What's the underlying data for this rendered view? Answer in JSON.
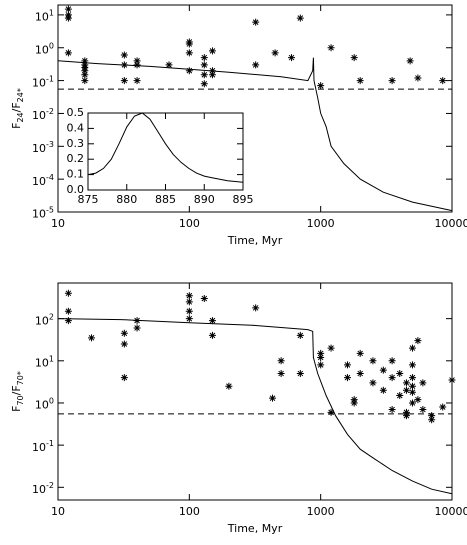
{
  "chart_data": [
    {
      "type": "line",
      "xlog": true,
      "ylog": true,
      "color": "#000000",
      "xlim": [
        10,
        10000
      ],
      "ylim": [
        1e-05,
        20
      ],
      "xticks": [
        10,
        100,
        1000,
        10000
      ],
      "yticks": [
        {
          "value": 1e-05,
          "label": "10",
          "exp": "-5"
        },
        {
          "value": 0.0001,
          "label": "10",
          "exp": "-4"
        },
        {
          "value": 0.001,
          "label": "10",
          "exp": "-3"
        },
        {
          "value": 0.01,
          "label": "10",
          "exp": "-2"
        },
        {
          "value": 0.1,
          "label": "10",
          "exp": "-1"
        },
        {
          "value": 1,
          "label": "10",
          "exp": "0"
        },
        {
          "value": 10,
          "label": "10",
          "exp": "1"
        }
      ],
      "xlabel": "Time, Myr",
      "ylabel": [
        "F",
        "24",
        "/F",
        "24*"
      ],
      "series": [
        {
          "style": "solid",
          "x": [
            10,
            20,
            50,
            100,
            200,
            500,
            800,
            870,
            880,
            890,
            950,
            1000,
            1100,
            1200,
            1500,
            2000,
            3000,
            5000,
            10000
          ],
          "values": [
            0.4,
            0.33,
            0.27,
            0.22,
            0.18,
            0.13,
            0.1,
            0.2,
            0.5,
            0.1,
            0.03,
            0.01,
            0.004,
            0.001,
            0.0003,
            0.0001,
            4e-05,
            2e-05,
            1.1e-05
          ]
        },
        {
          "style": "dashed",
          "x": [
            10,
            10000
          ],
          "values": [
            0.055,
            0.055
          ]
        },
        {
          "style": "points",
          "x": [
            12,
            12,
            12,
            12,
            16,
            16,
            16,
            16,
            16,
            16,
            32,
            32,
            32,
            40,
            40,
            40,
            70,
            100,
            100,
            100,
            100,
            130,
            130,
            130,
            130,
            150,
            150,
            150,
            320,
            320,
            450,
            600,
            700,
            1000,
            1200,
            1800,
            2000,
            3500,
            4800,
            5500,
            8500
          ],
          "values": [
            10,
            15,
            8,
            0.7,
            0.4,
            0.3,
            0.2,
            0.15,
            0.1,
            0.25,
            0.6,
            0.3,
            0.1,
            0.4,
            0.3,
            0.1,
            0.3,
            1.5,
            1.3,
            0.7,
            0.2,
            0.5,
            0.3,
            0.15,
            0.08,
            0.8,
            0.2,
            0.15,
            6,
            0.3,
            0.7,
            0.5,
            8,
            0.07,
            1.0,
            0.5,
            0.1,
            0.1,
            0.4,
            0.12,
            0.1
          ]
        }
      ]
    },
    {
      "type": "line",
      "xlog": false,
      "ylog": false,
      "color": "#000000",
      "xlim": [
        875,
        895
      ],
      "ylim": [
        0,
        0.5
      ],
      "xticks": [
        875,
        880,
        885,
        890,
        895
      ],
      "yticks": [
        {
          "value": 0,
          "label": "0.0"
        },
        0.1,
        0.2,
        0.3,
        0.4,
        0.5
      ],
      "series": [
        {
          "style": "solid",
          "x": [
            875,
            876,
            877,
            878,
            879,
            880,
            881,
            882,
            883,
            884,
            885,
            886,
            887,
            888,
            889,
            890,
            891,
            892,
            893,
            894,
            895
          ],
          "values": [
            0.1,
            0.11,
            0.14,
            0.2,
            0.3,
            0.41,
            0.48,
            0.5,
            0.46,
            0.38,
            0.3,
            0.23,
            0.18,
            0.14,
            0.11,
            0.09,
            0.08,
            0.07,
            0.06,
            0.055,
            0.05
          ]
        }
      ]
    },
    {
      "type": "line",
      "xlog": true,
      "ylog": true,
      "color": "#000000",
      "xlim": [
        10,
        10000
      ],
      "ylim": [
        0.005,
        700
      ],
      "xticks": [
        10,
        100,
        1000,
        10000
      ],
      "yticks": [
        {
          "value": 0.01,
          "label": "10",
          "exp": "-2"
        },
        {
          "value": 0.1,
          "label": "10",
          "exp": "-1"
        },
        {
          "value": 1,
          "label": "10",
          "exp": "0"
        },
        {
          "value": 10,
          "label": "10",
          "exp": "1"
        },
        {
          "value": 100,
          "label": "10",
          "exp": "2"
        }
      ],
      "xlabel": "Time, Myr",
      "ylabel": [
        "F",
        "70",
        "/F",
        "70*"
      ],
      "series": [
        {
          "style": "solid",
          "x": [
            10,
            30,
            100,
            300,
            800,
            870,
            880,
            950,
            1100,
            1300,
            1600,
            2000,
            2500,
            3500,
            5000,
            7000,
            10000
          ],
          "values": [
            100,
            95,
            80,
            70,
            55,
            50,
            12,
            5,
            1.5,
            0.5,
            0.18,
            0.08,
            0.05,
            0.025,
            0.014,
            0.009,
            0.007
          ]
        },
        {
          "style": "dashed",
          "x": [
            10,
            10000
          ],
          "values": [
            0.55,
            0.55
          ]
        },
        {
          "style": "points",
          "x": [
            12,
            12,
            12,
            18,
            32,
            32,
            32,
            40,
            40,
            100,
            100,
            100,
            100,
            130,
            150,
            150,
            200,
            320,
            430,
            500,
            500,
            700,
            700,
            1000,
            1000,
            1000,
            1200,
            1200,
            1600,
            1600,
            1800,
            1800,
            2000,
            2000,
            2500,
            2500,
            3000,
            3000,
            3500,
            3500,
            3500,
            4000,
            4000,
            4500,
            4500,
            4500,
            4500,
            5000,
            5000,
            5000,
            5000,
            5000,
            5000,
            5500,
            5500,
            6000,
            6000,
            7000,
            7000,
            8500,
            10000
          ],
          "values": [
            400,
            150,
            90,
            35,
            45,
            25,
            4,
            90,
            60,
            350,
            250,
            150,
            100,
            300,
            90,
            40,
            2.5,
            180,
            1.3,
            10,
            5,
            40,
            5,
            15,
            12,
            8,
            20,
            0.6,
            8,
            4,
            1,
            1.2,
            5,
            15,
            10,
            3,
            6,
            2,
            0.7,
            10,
            4,
            1.5,
            5,
            3,
            2,
            0.5,
            0.6,
            20,
            8,
            4,
            2.5,
            1.8,
            1,
            30,
            1.2,
            3,
            0.7,
            0.5,
            0.4,
            0.8,
            3.5
          ]
        }
      ]
    }
  ]
}
